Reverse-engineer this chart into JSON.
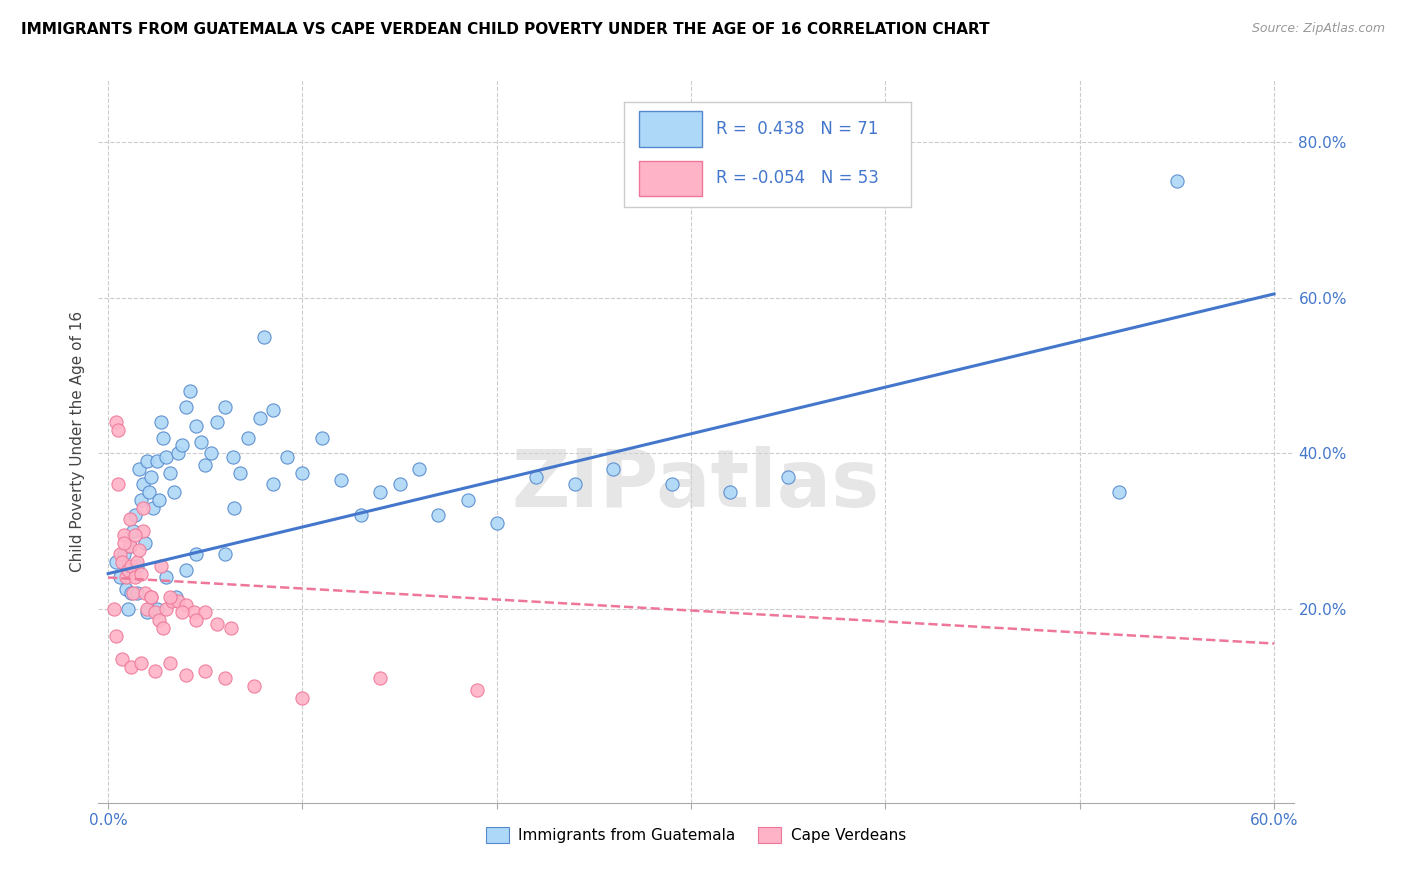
{
  "title": "IMMIGRANTS FROM GUATEMALA VS CAPE VERDEAN CHILD POVERTY UNDER THE AGE OF 16 CORRELATION CHART",
  "source": "Source: ZipAtlas.com",
  "ylabel": "Child Poverty Under the Age of 16",
  "xlim": [
    -0.005,
    0.61
  ],
  "ylim": [
    -0.05,
    0.88
  ],
  "x_ticks": [
    0.0,
    0.1,
    0.2,
    0.3,
    0.4,
    0.5,
    0.6
  ],
  "x_tick_labels": [
    "0.0%",
    "",
    "",
    "",
    "",
    "",
    "60.0%"
  ],
  "y_ticks": [
    0.2,
    0.4,
    0.6,
    0.8
  ],
  "y_tick_labels": [
    "20.0%",
    "40.0%",
    "60.0%",
    "80.0%"
  ],
  "legend_blue_label": "Immigrants from Guatemala",
  "legend_pink_label": "Cape Verdeans",
  "R_blue": "0.438",
  "N_blue": "71",
  "R_pink": "-0.054",
  "N_pink": "53",
  "blue_color": "#ADD8F7",
  "pink_color": "#FFB3C6",
  "blue_edge_color": "#5588CC",
  "pink_edge_color": "#EE7799",
  "blue_line_color": "#4477CC",
  "pink_line_color": "#EE7799",
  "watermark": "ZIPatlas",
  "blue_line_x0": 0.0,
  "blue_line_x1": 0.6,
  "blue_line_y0": 0.245,
  "blue_line_y1": 0.605,
  "pink_line_x0": 0.0,
  "pink_line_x1": 0.6,
  "pink_line_y0": 0.24,
  "pink_line_y1": 0.155,
  "blue_scatter_x": [
    0.004,
    0.006,
    0.008,
    0.009,
    0.01,
    0.011,
    0.012,
    0.013,
    0.014,
    0.015,
    0.016,
    0.017,
    0.018,
    0.019,
    0.02,
    0.021,
    0.022,
    0.023,
    0.025,
    0.026,
    0.027,
    0.028,
    0.03,
    0.032,
    0.034,
    0.036,
    0.038,
    0.04,
    0.042,
    0.045,
    0.048,
    0.05,
    0.053,
    0.056,
    0.06,
    0.064,
    0.068,
    0.072,
    0.078,
    0.085,
    0.092,
    0.1,
    0.11,
    0.12,
    0.13,
    0.14,
    0.15,
    0.16,
    0.17,
    0.185,
    0.2,
    0.22,
    0.24,
    0.26,
    0.29,
    0.32,
    0.35,
    0.045,
    0.065,
    0.085,
    0.01,
    0.015,
    0.02,
    0.025,
    0.03,
    0.035,
    0.04,
    0.06,
    0.08,
    0.52,
    0.55
  ],
  "blue_scatter_y": [
    0.26,
    0.24,
    0.27,
    0.225,
    0.25,
    0.28,
    0.22,
    0.3,
    0.32,
    0.255,
    0.38,
    0.34,
    0.36,
    0.285,
    0.39,
    0.35,
    0.37,
    0.33,
    0.39,
    0.34,
    0.44,
    0.42,
    0.395,
    0.375,
    0.35,
    0.4,
    0.41,
    0.46,
    0.48,
    0.435,
    0.415,
    0.385,
    0.4,
    0.44,
    0.46,
    0.395,
    0.375,
    0.42,
    0.445,
    0.455,
    0.395,
    0.375,
    0.42,
    0.365,
    0.32,
    0.35,
    0.36,
    0.38,
    0.32,
    0.34,
    0.31,
    0.37,
    0.36,
    0.38,
    0.36,
    0.35,
    0.37,
    0.27,
    0.33,
    0.36,
    0.2,
    0.22,
    0.195,
    0.2,
    0.24,
    0.215,
    0.25,
    0.27,
    0.55,
    0.35,
    0.75
  ],
  "pink_scatter_x": [
    0.003,
    0.004,
    0.005,
    0.006,
    0.007,
    0.008,
    0.009,
    0.01,
    0.011,
    0.012,
    0.013,
    0.014,
    0.015,
    0.016,
    0.017,
    0.018,
    0.019,
    0.02,
    0.022,
    0.024,
    0.026,
    0.028,
    0.03,
    0.033,
    0.036,
    0.04,
    0.044,
    0.05,
    0.056,
    0.063,
    0.005,
    0.008,
    0.011,
    0.014,
    0.018,
    0.022,
    0.027,
    0.032,
    0.038,
    0.045,
    0.004,
    0.007,
    0.012,
    0.017,
    0.024,
    0.032,
    0.04,
    0.05,
    0.06,
    0.075,
    0.1,
    0.14,
    0.19
  ],
  "pink_scatter_y": [
    0.2,
    0.44,
    0.43,
    0.27,
    0.26,
    0.295,
    0.24,
    0.25,
    0.28,
    0.255,
    0.22,
    0.24,
    0.26,
    0.275,
    0.245,
    0.3,
    0.22,
    0.2,
    0.215,
    0.195,
    0.185,
    0.175,
    0.2,
    0.21,
    0.21,
    0.205,
    0.195,
    0.195,
    0.18,
    0.175,
    0.36,
    0.285,
    0.315,
    0.295,
    0.33,
    0.215,
    0.255,
    0.215,
    0.195,
    0.185,
    0.165,
    0.135,
    0.125,
    0.13,
    0.12,
    0.13,
    0.115,
    0.12,
    0.11,
    0.1,
    0.085,
    0.11,
    0.095
  ]
}
